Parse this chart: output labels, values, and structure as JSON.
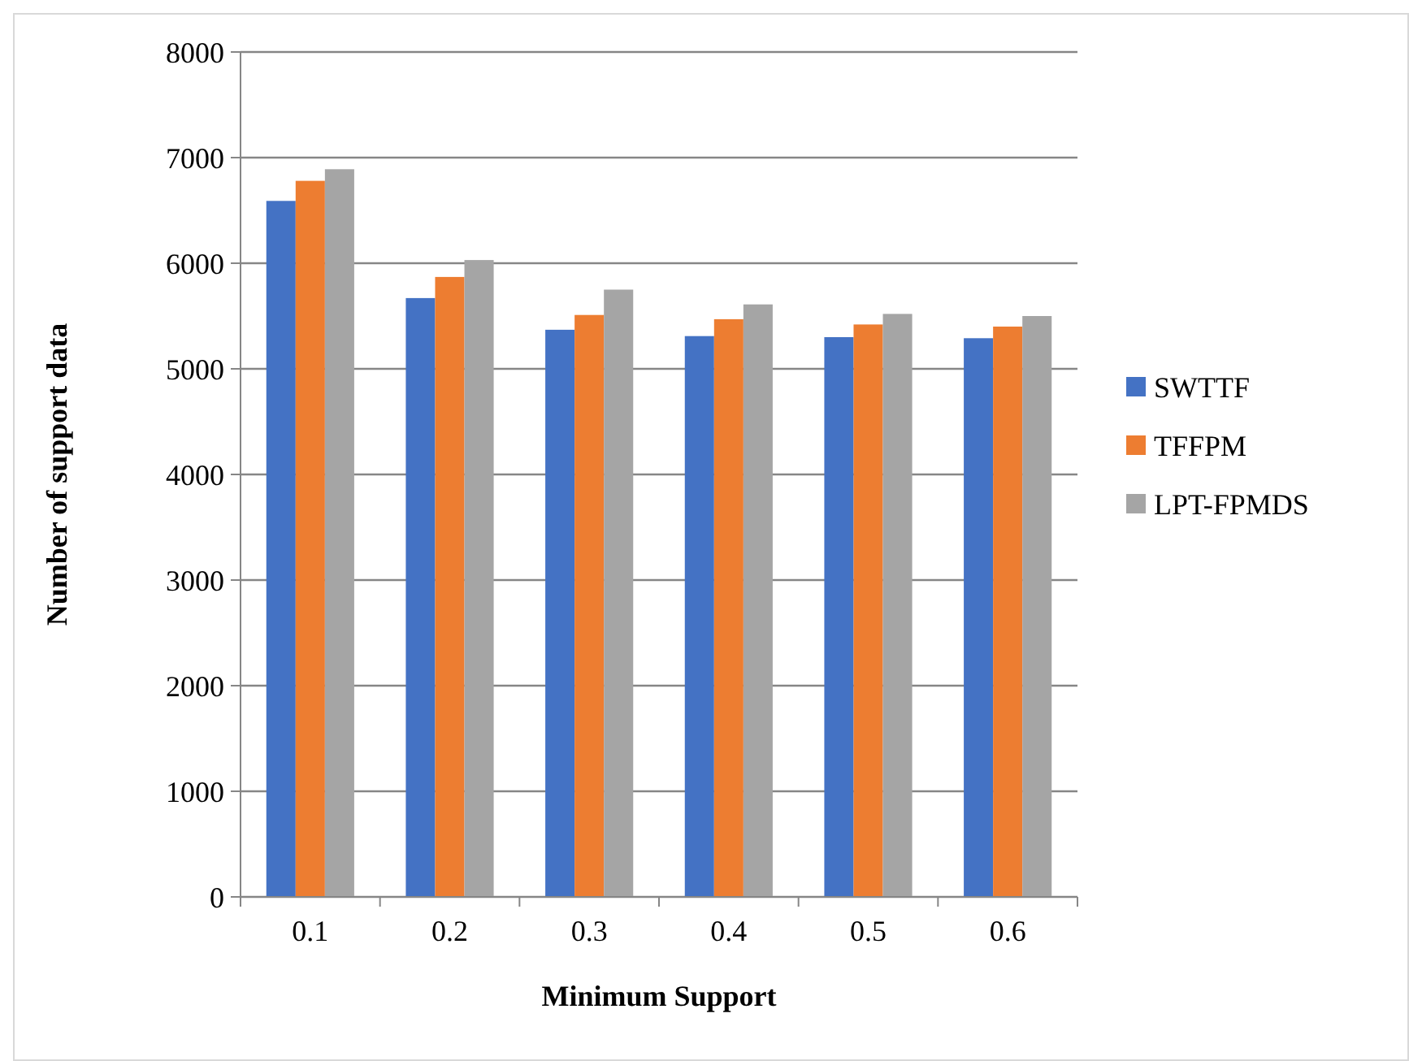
{
  "chart_data": {
    "type": "bar",
    "xlabel": "Minimum Support",
    "ylabel": "Number of support data",
    "categories": [
      "0.1",
      "0.2",
      "0.3",
      "0.4",
      "0.5",
      "0.6"
    ],
    "series": [
      {
        "name": "SWTTF",
        "color": "#4472c4",
        "values": [
          6590,
          5670,
          5370,
          5310,
          5300,
          5290
        ]
      },
      {
        "name": "TFFPM",
        "color": "#ed7d31",
        "values": [
          6780,
          5870,
          5510,
          5470,
          5420,
          5400
        ]
      },
      {
        "name": "LPT-FPMDS",
        "color": "#a5a5a5",
        "values": [
          6890,
          6030,
          5750,
          5610,
          5520,
          5500
        ]
      }
    ],
    "ylim": [
      0,
      8000
    ],
    "yticks": [
      0,
      1000,
      2000,
      3000,
      4000,
      5000,
      6000,
      7000,
      8000
    ],
    "grid": "y",
    "legend": "right"
  }
}
